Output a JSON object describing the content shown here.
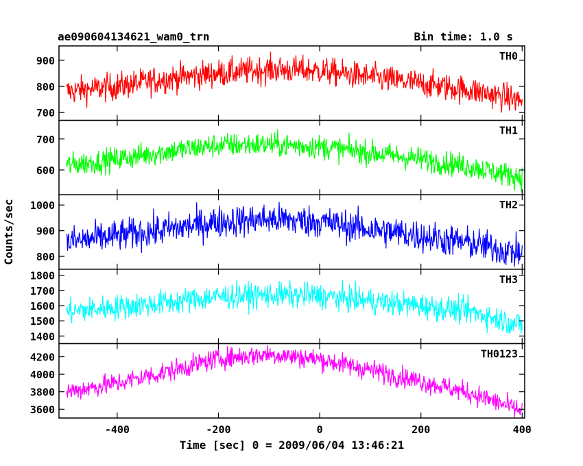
{
  "header": {
    "title": "ae090604134621_wam0_trn",
    "bin_time": "Bin time: 1.0 s"
  },
  "chart_data": {
    "type": "line",
    "xlabel": "Time [sec] 0 = 2009/06/04 13:46:21",
    "ylabel": "Counts/sec",
    "xlim": [
      -515,
      405
    ],
    "x_ticks": [
      -400,
      -200,
      0,
      200,
      400
    ],
    "x": {
      "start": -500,
      "end": 400,
      "step": 1
    },
    "grid": false,
    "panels": [
      {
        "name": "TH0",
        "color": "#ff0000",
        "ylim": [
          670,
          955
        ],
        "y_ticks": [
          700,
          800,
          900
        ],
        "trend_x": [
          -500,
          -400,
          -300,
          -200,
          -100,
          0,
          100,
          200,
          300,
          400
        ],
        "trend_y": [
          780,
          800,
          830,
          850,
          865,
          860,
          835,
          810,
          785,
          745
        ],
        "noise": 38
      },
      {
        "name": "TH1",
        "color": "#00ff00",
        "ylim": [
          520,
          760
        ],
        "y_ticks": [
          600,
          700
        ],
        "trend_x": [
          -500,
          -400,
          -300,
          -200,
          -100,
          0,
          100,
          200,
          300,
          400
        ],
        "trend_y": [
          615,
          635,
          660,
          680,
          682,
          675,
          655,
          635,
          610,
          575
        ],
        "noise": 28
      },
      {
        "name": "TH2",
        "color": "#0000ff",
        "ylim": [
          750,
          1040
        ],
        "y_ticks": [
          800,
          900,
          1000
        ],
        "trend_x": [
          -500,
          -400,
          -300,
          -200,
          -100,
          0,
          100,
          200,
          300,
          400
        ],
        "trend_y": [
          855,
          880,
          905,
          935,
          945,
          935,
          905,
          880,
          850,
          810
        ],
        "noise": 45
      },
      {
        "name": "TH3",
        "color": "#00ffff",
        "ylim": [
          1350,
          1840
        ],
        "y_ticks": [
          1400,
          1500,
          1600,
          1700,
          1800
        ],
        "trend_x": [
          -500,
          -400,
          -300,
          -200,
          -100,
          0,
          100,
          200,
          300,
          400
        ],
        "trend_y": [
          1560,
          1590,
          1620,
          1660,
          1670,
          1665,
          1630,
          1600,
          1560,
          1470
        ],
        "noise": 60
      },
      {
        "name": "TH0123",
        "color": "#ff00ff",
        "ylim": [
          3500,
          4350
        ],
        "y_ticks": [
          3600,
          3800,
          4000,
          4200
        ],
        "trend_x": [
          -500,
          -400,
          -300,
          -200,
          -100,
          0,
          100,
          200,
          300,
          400
        ],
        "trend_y": [
          3800,
          3900,
          4030,
          4180,
          4230,
          4170,
          4050,
          3920,
          3780,
          3580
        ],
        "noise": 85
      }
    ]
  }
}
